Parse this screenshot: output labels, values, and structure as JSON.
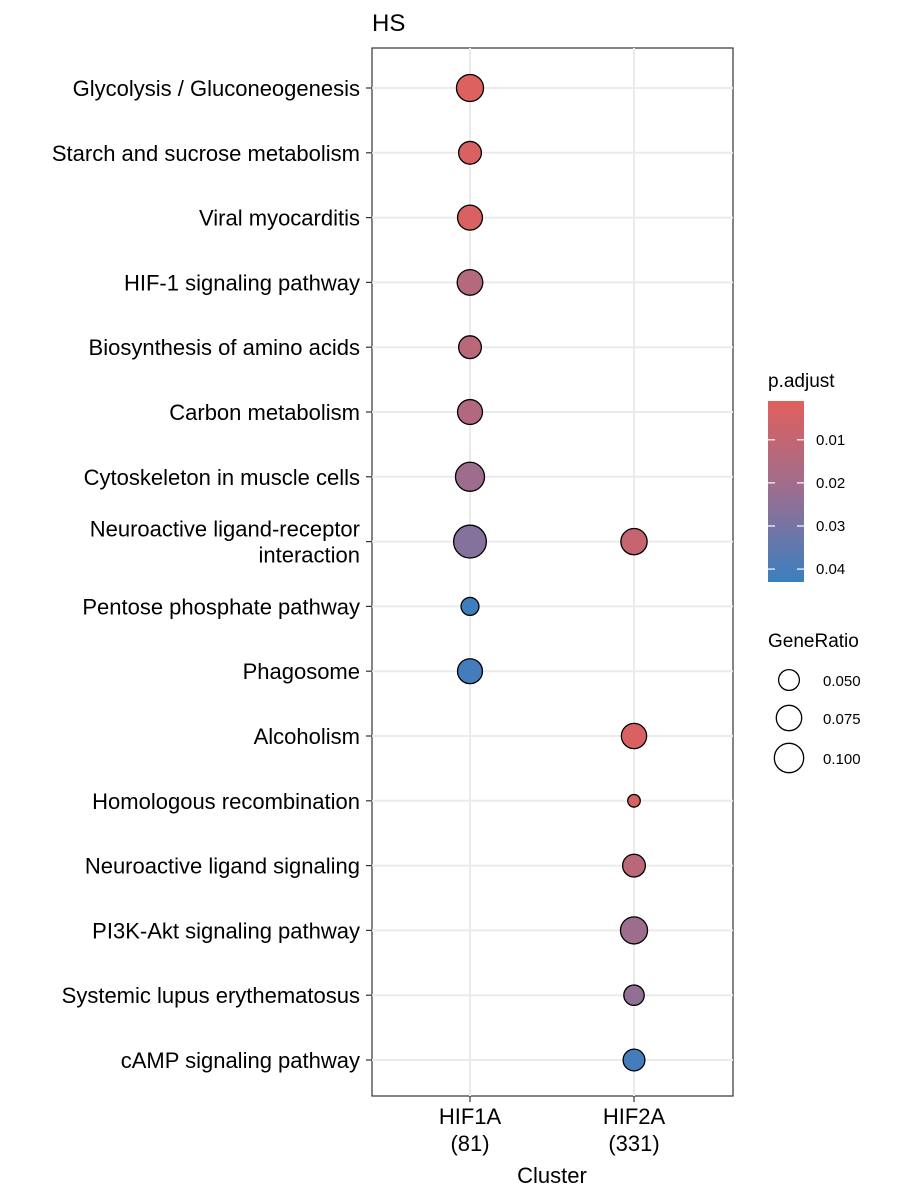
{
  "chart_data": {
    "type": "scatter",
    "title": "HS",
    "xlabel": "Cluster",
    "categories": [
      "HIF1A\n(81)",
      "HIF2A\n(331)"
    ],
    "terms": [
      "Glycolysis / Gluconeogenesis",
      "Starch and sucrose metabolism",
      "Viral myocarditis",
      "HIF-1 signaling pathway",
      "Biosynthesis of amino acids",
      "Carbon metabolism",
      "Cytoskeleton in muscle cells",
      "Neuroactive ligand-receptor\ninteraction",
      "Pentose phosphate pathway",
      "Phagosome",
      "Alcoholism",
      "Homologous recombination",
      "Neuroactive ligand signaling",
      "PI3K-Akt signaling pathway",
      "Systemic lupus erythematosus",
      "cAMP signaling pathway"
    ],
    "points": [
      {
        "cluster": "HIF1A\n(81)",
        "term": "Glycolysis / Gluconeogenesis",
        "gene_ratio": 0.085,
        "p_adjust": 0.002
      },
      {
        "cluster": "HIF1A\n(81)",
        "term": "Starch and sucrose metabolism",
        "gene_ratio": 0.06,
        "p_adjust": 0.003
      },
      {
        "cluster": "HIF1A\n(81)",
        "term": "Viral myocarditis",
        "gene_ratio": 0.072,
        "p_adjust": 0.003
      },
      {
        "cluster": "HIF1A\n(81)",
        "term": "HIF-1 signaling pathway",
        "gene_ratio": 0.076,
        "p_adjust": 0.014
      },
      {
        "cluster": "HIF1A\n(81)",
        "term": "Biosynthesis of amino acids",
        "gene_ratio": 0.06,
        "p_adjust": 0.013
      },
      {
        "cluster": "HIF1A\n(81)",
        "term": "Carbon metabolism",
        "gene_ratio": 0.072,
        "p_adjust": 0.015
      },
      {
        "cluster": "HIF1A\n(81)",
        "term": "Cytoskeleton in muscle cells",
        "gene_ratio": 0.098,
        "p_adjust": 0.021
      },
      {
        "cluster": "HIF1A\n(81)",
        "term": "Neuroactive ligand-receptor\ninteraction",
        "gene_ratio": 0.125,
        "p_adjust": 0.027
      },
      {
        "cluster": "HIF1A\n(81)",
        "term": "Pentose phosphate pathway",
        "gene_ratio": 0.037,
        "p_adjust": 0.042
      },
      {
        "cluster": "HIF1A\n(81)",
        "term": "Phagosome",
        "gene_ratio": 0.072,
        "p_adjust": 0.041
      },
      {
        "cluster": "HIF2A\n(331)",
        "term": "Neuroactive ligand-receptor\ninteraction",
        "gene_ratio": 0.08,
        "p_adjust": 0.009
      },
      {
        "cluster": "HIF2A\n(331)",
        "term": "Alcoholism",
        "gene_ratio": 0.074,
        "p_adjust": 0.003
      },
      {
        "cluster": "HIF2A\n(331)",
        "term": "Homologous recombination",
        "gene_ratio": 0.018,
        "p_adjust": 0.004
      },
      {
        "cluster": "HIF2A\n(331)",
        "term": "Neuroactive ligand signaling",
        "gene_ratio": 0.06,
        "p_adjust": 0.013
      },
      {
        "cluster": "HIF2A\n(331)",
        "term": "PI3K-Akt signaling pathway",
        "gene_ratio": 0.085,
        "p_adjust": 0.021
      },
      {
        "cluster": "HIF2A\n(331)",
        "term": "Systemic lupus erythematosus",
        "gene_ratio": 0.048,
        "p_adjust": 0.024
      },
      {
        "cluster": "HIF2A\n(331)",
        "term": "cAMP signaling pathway",
        "gene_ratio": 0.055,
        "p_adjust": 0.041
      }
    ],
    "color_legend": {
      "title": "p.adjust",
      "breaks": [
        0.01,
        0.02,
        0.03,
        0.04
      ],
      "range": [
        0.001,
        0.043
      ],
      "low_color": "#e0605c",
      "mid_color": "#9b6e91",
      "high_color": "#3a7fc0"
    },
    "size_legend": {
      "title": "GeneRatio",
      "breaks": [
        0.05,
        0.075,
        0.1
      ],
      "labels": [
        "0.050",
        "0.075",
        "0.100"
      ]
    },
    "grid": true,
    "legend_position": "right"
  }
}
